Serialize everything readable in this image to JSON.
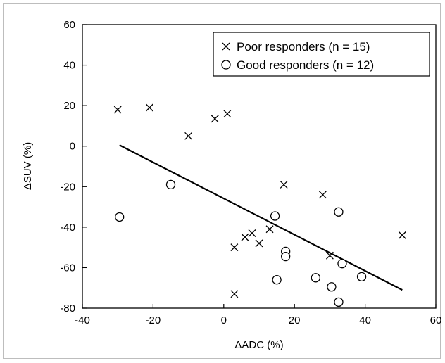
{
  "chart_data": {
    "type": "scatter",
    "xlabel": "ΔADC (%)",
    "ylabel": "ΔSUV (%)",
    "xlim": [
      -40,
      60
    ],
    "ylim": [
      -80,
      60
    ],
    "x_ticks": [
      -40,
      -20,
      0,
      20,
      40,
      60
    ],
    "y_ticks": [
      60,
      40,
      20,
      0,
      -20,
      -40,
      -60,
      -80
    ],
    "x_tick_labels": [
      "-40",
      "-20",
      "0",
      "20",
      "40",
      "60"
    ],
    "y_tick_labels": [
      "60",
      "40",
      "20",
      "0",
      "-20",
      "-40",
      "-60",
      "-80"
    ],
    "grid": false,
    "legend_position": "top-right",
    "series": [
      {
        "name": "Poor responders (n = 15)",
        "marker": "x",
        "points": [
          [
            -30,
            18
          ],
          [
            -21,
            19
          ],
          [
            -10,
            5
          ],
          [
            -2.5,
            13.5
          ],
          [
            1,
            16
          ],
          [
            3,
            -50
          ],
          [
            6,
            -45
          ],
          [
            8,
            -43
          ],
          [
            10,
            -48
          ],
          [
            13,
            -41
          ],
          [
            17,
            -19
          ],
          [
            28,
            -24
          ],
          [
            30,
            -54
          ],
          [
            50.5,
            -44
          ],
          [
            3,
            -73
          ]
        ]
      },
      {
        "name": "Good responders (n = 12)",
        "marker": "o",
        "points": [
          [
            -29.5,
            -35
          ],
          [
            -15,
            -19
          ],
          [
            14.5,
            -34.5
          ],
          [
            15,
            -66
          ],
          [
            17.5,
            -52
          ],
          [
            17.5,
            -54.5
          ],
          [
            26,
            -65
          ],
          [
            30.5,
            -69.5
          ],
          [
            32.5,
            -32.5
          ],
          [
            33.5,
            -58
          ],
          [
            32.5,
            -77
          ],
          [
            39,
            -64.5
          ]
        ]
      }
    ],
    "regression_line": {
      "x": [
        -29.5,
        50.5
      ],
      "y": [
        0.5,
        -71
      ]
    }
  }
}
